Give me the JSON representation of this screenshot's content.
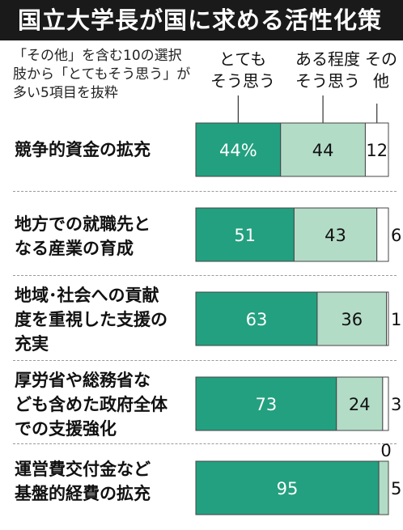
{
  "title": "国立大学長が国に求める活性化策",
  "note": "「その他」を含む10の選択肢から「とてもそう思う」が多い5項目を抜粋",
  "colors": {
    "strong": "#23a07f",
    "somewhat": "#b3dcc7",
    "other": "#ffffff",
    "stroke": "#444444"
  },
  "chart_data": {
    "type": "bar",
    "orientation": "horizontal",
    "stacked": true,
    "percent_suffix_first": "%",
    "categories": [
      "競争的資金の拡充",
      "地方での就職先となる産業の育成",
      "地域・社会への貢献度を重視した支援の充実",
      "厚労省や総務省なども含めた政府全体での支援強化",
      "運営費交付金など基盤的経費の拡充"
    ],
    "category_lines": [
      [
        "競争的資金の拡充"
      ],
      [
        "地方での就職先と",
        "なる産業の育成"
      ],
      [
        "地域･社会への貢献",
        "度を重視した支援の",
        "充実"
      ],
      [
        "厚労省や総務省な",
        "ども含めた政府全体",
        "での支援強化"
      ],
      [
        "運営費交付金など",
        "基盤的経費の拡充"
      ]
    ],
    "series": [
      {
        "name": "とてもそう思う",
        "legend_lines": [
          "とても",
          "そう思う"
        ],
        "values": [
          44,
          51,
          63,
          73,
          95
        ]
      },
      {
        "name": "ある程度そう思う",
        "legend_lines": [
          "ある程度",
          "そう思う"
        ],
        "values": [
          44,
          43,
          36,
          24,
          5
        ]
      },
      {
        "name": "その他",
        "legend_lines": [
          "その",
          "他"
        ],
        "values": [
          12,
          6,
          1,
          3,
          0
        ]
      }
    ],
    "xlim": [
      0,
      100
    ]
  }
}
